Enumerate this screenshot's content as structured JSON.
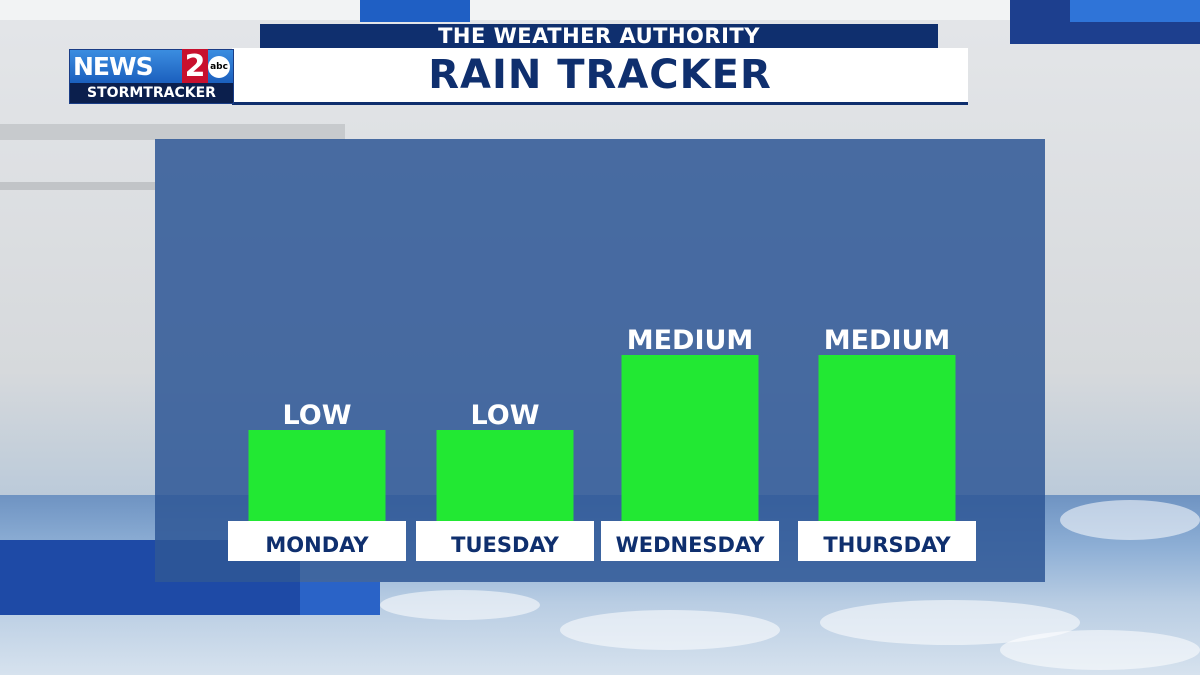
{
  "header": {
    "subtitle": "THE WEATHER AUTHORITY",
    "title": "RAIN TRACKER"
  },
  "logo": {
    "news": "NEWS",
    "number": "2",
    "network": "abc",
    "tagline": "STORMTRACKER"
  },
  "colors": {
    "bar": "#22e833",
    "panel": "#2f5796",
    "title_text": "#0f2f6e"
  },
  "chart_data": {
    "type": "bar",
    "categories": [
      "MONDAY",
      "TUESDAY",
      "WEDNESDAY",
      "THURSDAY"
    ],
    "values": [
      1,
      1,
      2,
      2
    ],
    "data_labels": [
      "LOW",
      "LOW",
      "MEDIUM",
      "MEDIUM"
    ],
    "title": "RAIN TRACKER",
    "xlabel": "",
    "ylabel": "",
    "ylim": [
      0,
      2
    ],
    "grid": false,
    "legend": "none"
  }
}
